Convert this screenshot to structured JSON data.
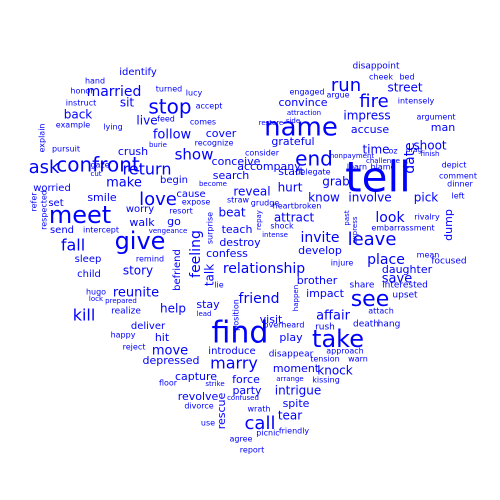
{
  "colors": {
    "background": "#ffffff",
    "word": "#0000ff"
  },
  "shape": "heart",
  "words": [
    "tell",
    "find",
    "name",
    "take",
    "give",
    "meet",
    "confront",
    "see",
    "ask",
    "run",
    "leave",
    "stop",
    "fire",
    "end",
    "love",
    "return",
    "kill",
    "show",
    "fall",
    "call",
    "marry",
    "relationship",
    "married",
    "friend",
    "invite",
    "place",
    "feeling",
    "look",
    "make",
    "follow",
    "story",
    "reunite",
    "talk",
    "help",
    "move",
    "affair",
    "date",
    "shoot",
    "street",
    "time",
    "save",
    "knock",
    "impress",
    "accuse",
    "pick",
    "daughter",
    "reveal",
    "hurt",
    "grab",
    "attract",
    "know",
    "involve",
    "beat",
    "teach",
    "confess",
    "destroy",
    "search",
    "conceive",
    "grateful",
    "convince",
    "start",
    "cover",
    "live",
    "sit",
    "back",
    "crush",
    "identify",
    "worried",
    "set",
    "send",
    "smile",
    "child",
    "sleep",
    "walk",
    "worry",
    "begin",
    "cause",
    "go",
    "hit",
    "deliver",
    "depressed",
    "introduce",
    "force",
    "capture",
    "revolve",
    "party",
    "intrigue",
    "spite",
    "tear",
    "rescue",
    "play",
    "visit",
    "accompany",
    "brother",
    "develop",
    "impact",
    "moment",
    "dump",
    "man",
    "argument",
    "bed",
    "cheek",
    "disappoint",
    "intensely",
    "engaged",
    "argue",
    "drag",
    "finish",
    "depict",
    "comment",
    "dinner",
    "left",
    "rivalry",
    "embarrassment",
    "mean",
    "focused",
    "upset",
    "interested",
    "share",
    "attach",
    "death",
    "hang",
    "warn",
    "approach",
    "kissing",
    "tension",
    "rush",
    "disappear",
    "overheard",
    "friendly",
    "stay",
    "lie",
    "position",
    "surprise",
    "befriend",
    "remind",
    "vengeance",
    "intercept",
    "respected",
    "refer",
    "pursuit",
    "explain",
    "example",
    "instruct",
    "hand",
    "honor",
    "cut",
    "gaze",
    "lying",
    "turned",
    "lucy",
    "accept",
    "comes",
    "recognize",
    "apologize",
    "burie",
    "feed",
    "become",
    "resort",
    "expose",
    "straw",
    "grudge",
    "heartbroken",
    "delegate",
    "consider",
    "restore",
    "side",
    "attraction",
    "nonpayment",
    "challenge",
    "learn",
    "blame",
    "oz",
    "injure",
    "express",
    "past",
    "shock",
    "intense",
    "repay",
    "happen",
    "reject",
    "happy",
    "hugo",
    "lock",
    "prepared",
    "lead",
    "floor",
    "strike",
    "arrange",
    "divorce",
    "confused",
    "wrath",
    "use",
    "agree",
    "picnic",
    "report",
    "realize"
  ]
}
